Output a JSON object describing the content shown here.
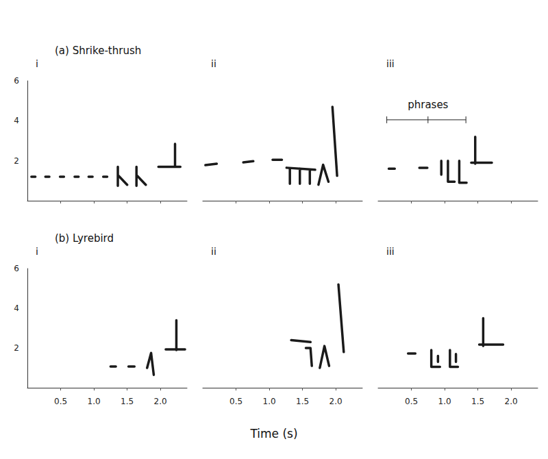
{
  "xlabel": "Time (s)",
  "chart_data": [
    {
      "type": "line",
      "title": "(a) Shrike-thrush",
      "color": "#1a1a1a",
      "grid": false,
      "panels": [
        {
          "title": "i",
          "tick_labels": "y",
          "xlim": [
            0,
            2.4
          ],
          "ylim": [
            0,
            6
          ],
          "xticks": [
            0.5,
            {
              "value": 1,
              "label": "1.0"
            },
            1.5,
            {
              "value": 2,
              "label": "2.0"
            }
          ],
          "yticks": [
            2,
            4,
            6
          ],
          "x": [
            0.06,
            0.12,
            null,
            0.27,
            0.33,
            null,
            0.49,
            0.55,
            null,
            0.71,
            0.77,
            null,
            0.92,
            0.98,
            null,
            1.14,
            1.2,
            null,
            1.36,
            1.36,
            null,
            1.37,
            1.5,
            null,
            1.64,
            1.64,
            null,
            1.65,
            1.78,
            null,
            1.97,
            2.3,
            null,
            2.22,
            2.22
          ],
          "values": [
            1.2,
            1.2,
            null,
            1.2,
            1.2,
            null,
            1.2,
            1.2,
            null,
            1.2,
            1.2,
            null,
            1.2,
            1.2,
            null,
            1.2,
            1.2,
            null,
            1.7,
            0.75,
            null,
            1.25,
            0.8,
            null,
            1.7,
            0.75,
            null,
            1.25,
            0.8,
            null,
            1.7,
            1.7,
            null,
            2.85,
            1.7
          ]
        },
        {
          "title": "ii",
          "tick_labels": false,
          "xlim": [
            0,
            2.4
          ],
          "ylim": [
            0,
            6
          ],
          "xticks": [
            0.5,
            {
              "value": 1,
              "label": "1.0"
            },
            1.5,
            {
              "value": 2,
              "label": "2.0"
            }
          ],
          "x": [
            0.04,
            0.21,
            null,
            0.61,
            0.76,
            null,
            1.05,
            1.19,
            null,
            1.26,
            1.69,
            null,
            1.31,
            1.31,
            null,
            1.46,
            1.46,
            null,
            1.61,
            1.61,
            null,
            1.74,
            1.81,
            1.89,
            null,
            1.95,
            2.02
          ],
          "values": [
            1.78,
            1.85,
            null,
            1.92,
            1.98,
            null,
            2.05,
            2.05,
            null,
            1.65,
            1.55,
            null,
            1.6,
            0.85,
            null,
            1.6,
            0.85,
            null,
            1.55,
            0.85,
            null,
            0.8,
            1.8,
            0.95,
            null,
            4.7,
            1.25
          ]
        },
        {
          "title": "iii",
          "tick_labels": false,
          "xlim": [
            0,
            2.4
          ],
          "ylim": [
            0,
            6
          ],
          "xticks": [
            0.5,
            {
              "value": 1,
              "label": "1.0"
            },
            1.5,
            {
              "value": 2,
              "label": "2.0"
            }
          ],
          "annotations": [
            {
              "text": "phrases",
              "x": [
                0.13,
                0.75,
                1.32
              ],
              "y": 4.05
            }
          ],
          "x": [
            0.16,
            0.25,
            null,
            0.62,
            0.74,
            null,
            0.95,
            0.95,
            null,
            1.05,
            1.05,
            1.15,
            null,
            1.22,
            1.22,
            1.33,
            null,
            1.4,
            1.71,
            null,
            1.46,
            1.46
          ],
          "values": [
            1.6,
            1.6,
            null,
            1.65,
            1.65,
            null,
            2.0,
            1.3,
            null,
            2.0,
            0.95,
            0.95,
            null,
            2.0,
            0.9,
            0.9,
            null,
            1.9,
            1.9,
            null,
            3.2,
            1.85
          ]
        }
      ]
    },
    {
      "type": "line",
      "title": "(b) Lyrebird",
      "color": "#1a1a1a",
      "grid": false,
      "panels": [
        {
          "title": "i",
          "tick_labels": true,
          "xlim": [
            0,
            2.4
          ],
          "ylim": [
            0,
            6
          ],
          "xticks": [
            0.5,
            {
              "value": 1,
              "label": "1.0"
            },
            1.5,
            {
              "value": 2,
              "label": "2.0"
            }
          ],
          "yticks": [
            2,
            4,
            6
          ],
          "x": [
            1.25,
            1.33,
            null,
            1.52,
            1.61,
            null,
            1.8,
            1.86,
            1.9,
            null,
            2.08,
            2.37,
            null,
            2.24,
            2.24
          ],
          "values": [
            1.07,
            1.07,
            null,
            1.07,
            1.07,
            null,
            1.0,
            1.75,
            0.65,
            null,
            1.93,
            1.93,
            null,
            3.4,
            1.9
          ]
        },
        {
          "title": "ii",
          "tick_labels": "x",
          "xlim": [
            0,
            2.4
          ],
          "ylim": [
            0,
            6
          ],
          "xticks": [
            0.5,
            {
              "value": 1,
              "label": "1.0"
            },
            1.5,
            {
              "value": 2,
              "label": "2.0"
            }
          ],
          "x": [
            1.33,
            1.62,
            null,
            1.55,
            1.62,
            1.64,
            null,
            1.76,
            1.83,
            1.9,
            null,
            2.04,
            2.12
          ],
          "values": [
            2.4,
            2.3,
            null,
            2.0,
            2.0,
            1.1,
            null,
            1.0,
            2.1,
            1.1,
            null,
            5.2,
            1.8
          ]
        },
        {
          "title": "iii",
          "tick_labels": "x",
          "xlim": [
            0,
            2.4
          ],
          "ylim": [
            0,
            6
          ],
          "xticks": [
            0.5,
            {
              "value": 1,
              "label": "1.0"
            },
            1.5,
            {
              "value": 2,
              "label": "2.0"
            }
          ],
          "x": [
            0.45,
            0.56,
            null,
            0.8,
            0.8,
            0.93,
            null,
            0.9,
            0.9,
            null,
            1.08,
            1.08,
            1.2,
            null,
            1.17,
            1.17,
            null,
            1.52,
            1.88,
            null,
            1.58,
            1.58
          ],
          "values": [
            1.72,
            1.72,
            null,
            1.9,
            1.05,
            1.05,
            null,
            1.6,
            1.3,
            null,
            1.9,
            1.05,
            1.05,
            null,
            1.7,
            1.3,
            null,
            2.17,
            2.17,
            null,
            3.5,
            2.1
          ]
        }
      ]
    }
  ]
}
